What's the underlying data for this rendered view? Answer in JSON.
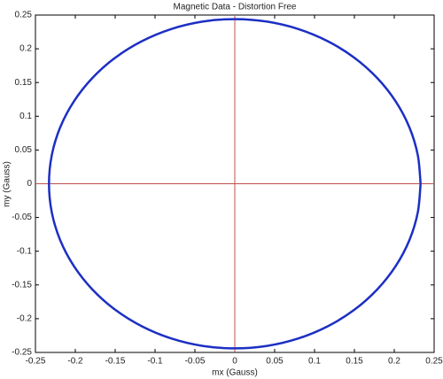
{
  "chart_data": {
    "type": "line",
    "title": "Magnetic Data - Distortion Free",
    "x_label": "mx (Gauss)",
    "y_label": "my (Gauss)",
    "x": [
      0.233,
      0.2295,
      0.219,
      0.2018,
      0.1785,
      0.1498,
      0.1165,
      0.0797,
      0.0405,
      0,
      -0.0405,
      -0.0797,
      -0.1165,
      -0.1498,
      -0.1785,
      -0.2018,
      -0.219,
      -0.2295,
      -0.233,
      -0.2295,
      -0.219,
      -0.2018,
      -0.1785,
      -0.1498,
      -0.1165,
      -0.0797,
      -0.0405,
      0,
      0.0405,
      0.0797,
      0.1165,
      0.1498,
      0.1785,
      0.2018,
      0.219,
      0.2295,
      0.233
    ],
    "series": [
      {
        "color": "#1c2fc4",
        "values": [
          0,
          0.0424,
          0.0835,
          0.122,
          0.1568,
          0.1869,
          0.2113,
          0.2293,
          0.2403,
          0.244,
          0.2403,
          0.2293,
          0.2113,
          0.1869,
          0.1568,
          0.122,
          0.0835,
          0.0424,
          0,
          -0.0424,
          -0.0835,
          -0.122,
          -0.1568,
          -0.1869,
          -0.2113,
          -0.2293,
          -0.2403,
          -0.244,
          -0.2403,
          -0.2293,
          -0.2113,
          -0.1869,
          -0.1568,
          -0.122,
          -0.0835,
          -0.0424,
          0
        ]
      }
    ],
    "crosshair": {
      "x": 0,
      "y": 0,
      "color": "#c0504d"
    },
    "xlim": [
      -0.25,
      0.25
    ],
    "xticks": [
      -0.25,
      -0.2,
      -0.15,
      -0.1,
      -0.05,
      0,
      0.05,
      0.1,
      0.15,
      0.2,
      0.25
    ],
    "ylim": [
      -0.25,
      0.25
    ],
    "yticks": [
      -0.25,
      -0.2,
      -0.15,
      -0.1,
      -0.05,
      0,
      0.05,
      0.1,
      0.15,
      0.2,
      0.25
    ]
  }
}
